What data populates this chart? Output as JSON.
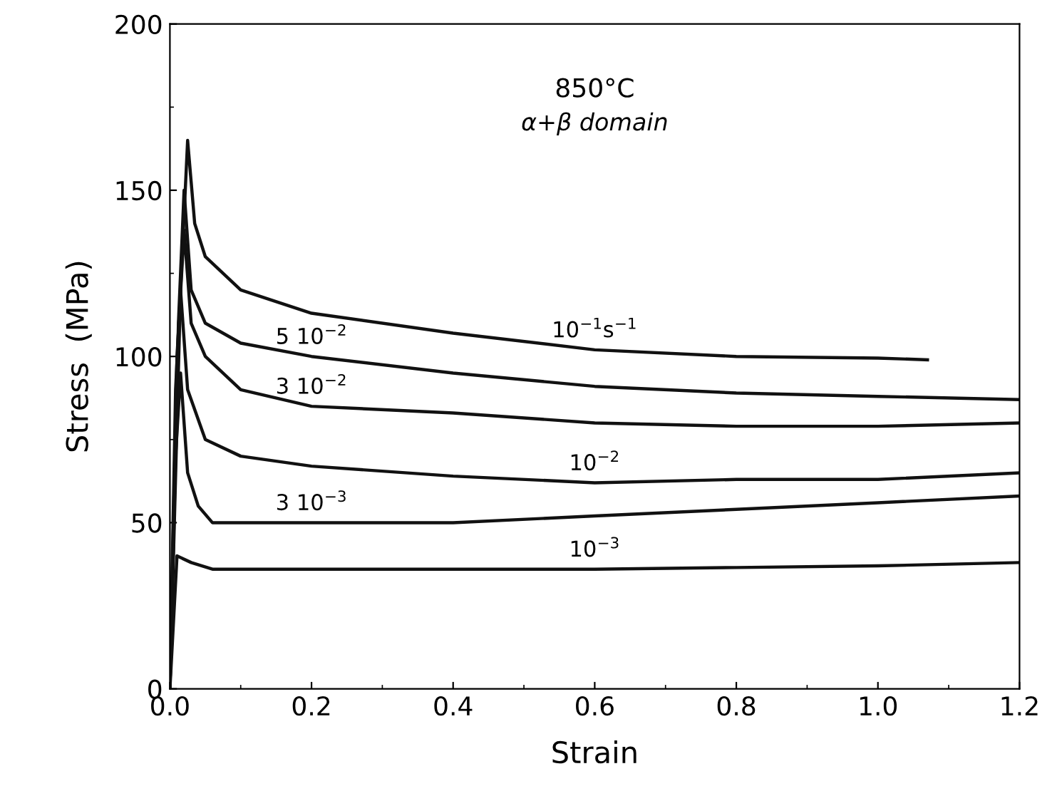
{
  "chart_data": {
    "type": "line",
    "title": "850°C",
    "subtitle": "α+β domain",
    "xlabel": "Strain",
    "ylabel": "Stress  (MPa)",
    "xlim": [
      0,
      1.2
    ],
    "xticks": [
      {
        "value": 0,
        "label": "0.0"
      },
      0.2,
      0.4,
      0.6,
      0.8,
      {
        "value": 1,
        "label": "1.0"
      },
      1.2
    ],
    "ylim": [
      0,
      200
    ],
    "yticks": [
      0,
      50,
      100,
      150,
      200
    ],
    "grid": false,
    "legend": false,
    "marker": "none",
    "line_style": "solid",
    "series": [
      {
        "name": "10$^{−1}$s$^{−1}$",
        "color": "#111111",
        "x": [
          0,
          0.015,
          0.025,
          0.035,
          0.05,
          0.1,
          0.2,
          0.4,
          0.6,
          0.8,
          1.0,
          1.07
        ],
        "values": [
          0,
          120,
          165,
          140,
          130,
          120,
          113,
          107,
          102,
          100,
          99.5,
          99
        ]
      },
      {
        "name": "5 10$^{−2}$",
        "color": "#111111",
        "x": [
          0,
          0.012,
          0.02,
          0.03,
          0.05,
          0.1,
          0.2,
          0.4,
          0.6,
          0.8,
          1.0,
          1.2
        ],
        "values": [
          0,
          110,
          150,
          120,
          110,
          104,
          100,
          95,
          91,
          89,
          88,
          87
        ]
      },
      {
        "name": "3 10$^{−2}$",
        "color": "#111111",
        "x": [
          0,
          0.01,
          0.02,
          0.03,
          0.05,
          0.1,
          0.2,
          0.4,
          0.6,
          0.8,
          1.0,
          1.2
        ],
        "values": [
          0,
          100,
          138,
          110,
          100,
          90,
          85,
          83,
          80,
          79,
          79,
          80
        ]
      },
      {
        "name": "10$^{−2}$",
        "color": "#111111",
        "x": [
          0,
          0.008,
          0.015,
          0.025,
          0.05,
          0.1,
          0.2,
          0.4,
          0.6,
          0.8,
          1.0,
          1.2
        ],
        "values": [
          0,
          90,
          120,
          90,
          75,
          70,
          67,
          64,
          62,
          63,
          63,
          65
        ]
      },
      {
        "name": "3 10$^{−3}$",
        "color": "#111111",
        "x": [
          0,
          0.008,
          0.015,
          0.025,
          0.04,
          0.06,
          0.2,
          0.4,
          0.6,
          0.8,
          1.0,
          1.2
        ],
        "values": [
          0,
          70,
          95,
          65,
          55,
          50,
          50,
          50,
          52,
          54,
          56,
          58
        ]
      },
      {
        "name": "10$^{−3}$",
        "color": "#111111",
        "x": [
          0,
          0.01,
          0.03,
          0.06,
          0.2,
          0.4,
          0.6,
          0.8,
          1.0,
          1.2
        ],
        "values": [
          0,
          40,
          38,
          36,
          36,
          36,
          36,
          36.5,
          37,
          38
        ]
      }
    ]
  }
}
